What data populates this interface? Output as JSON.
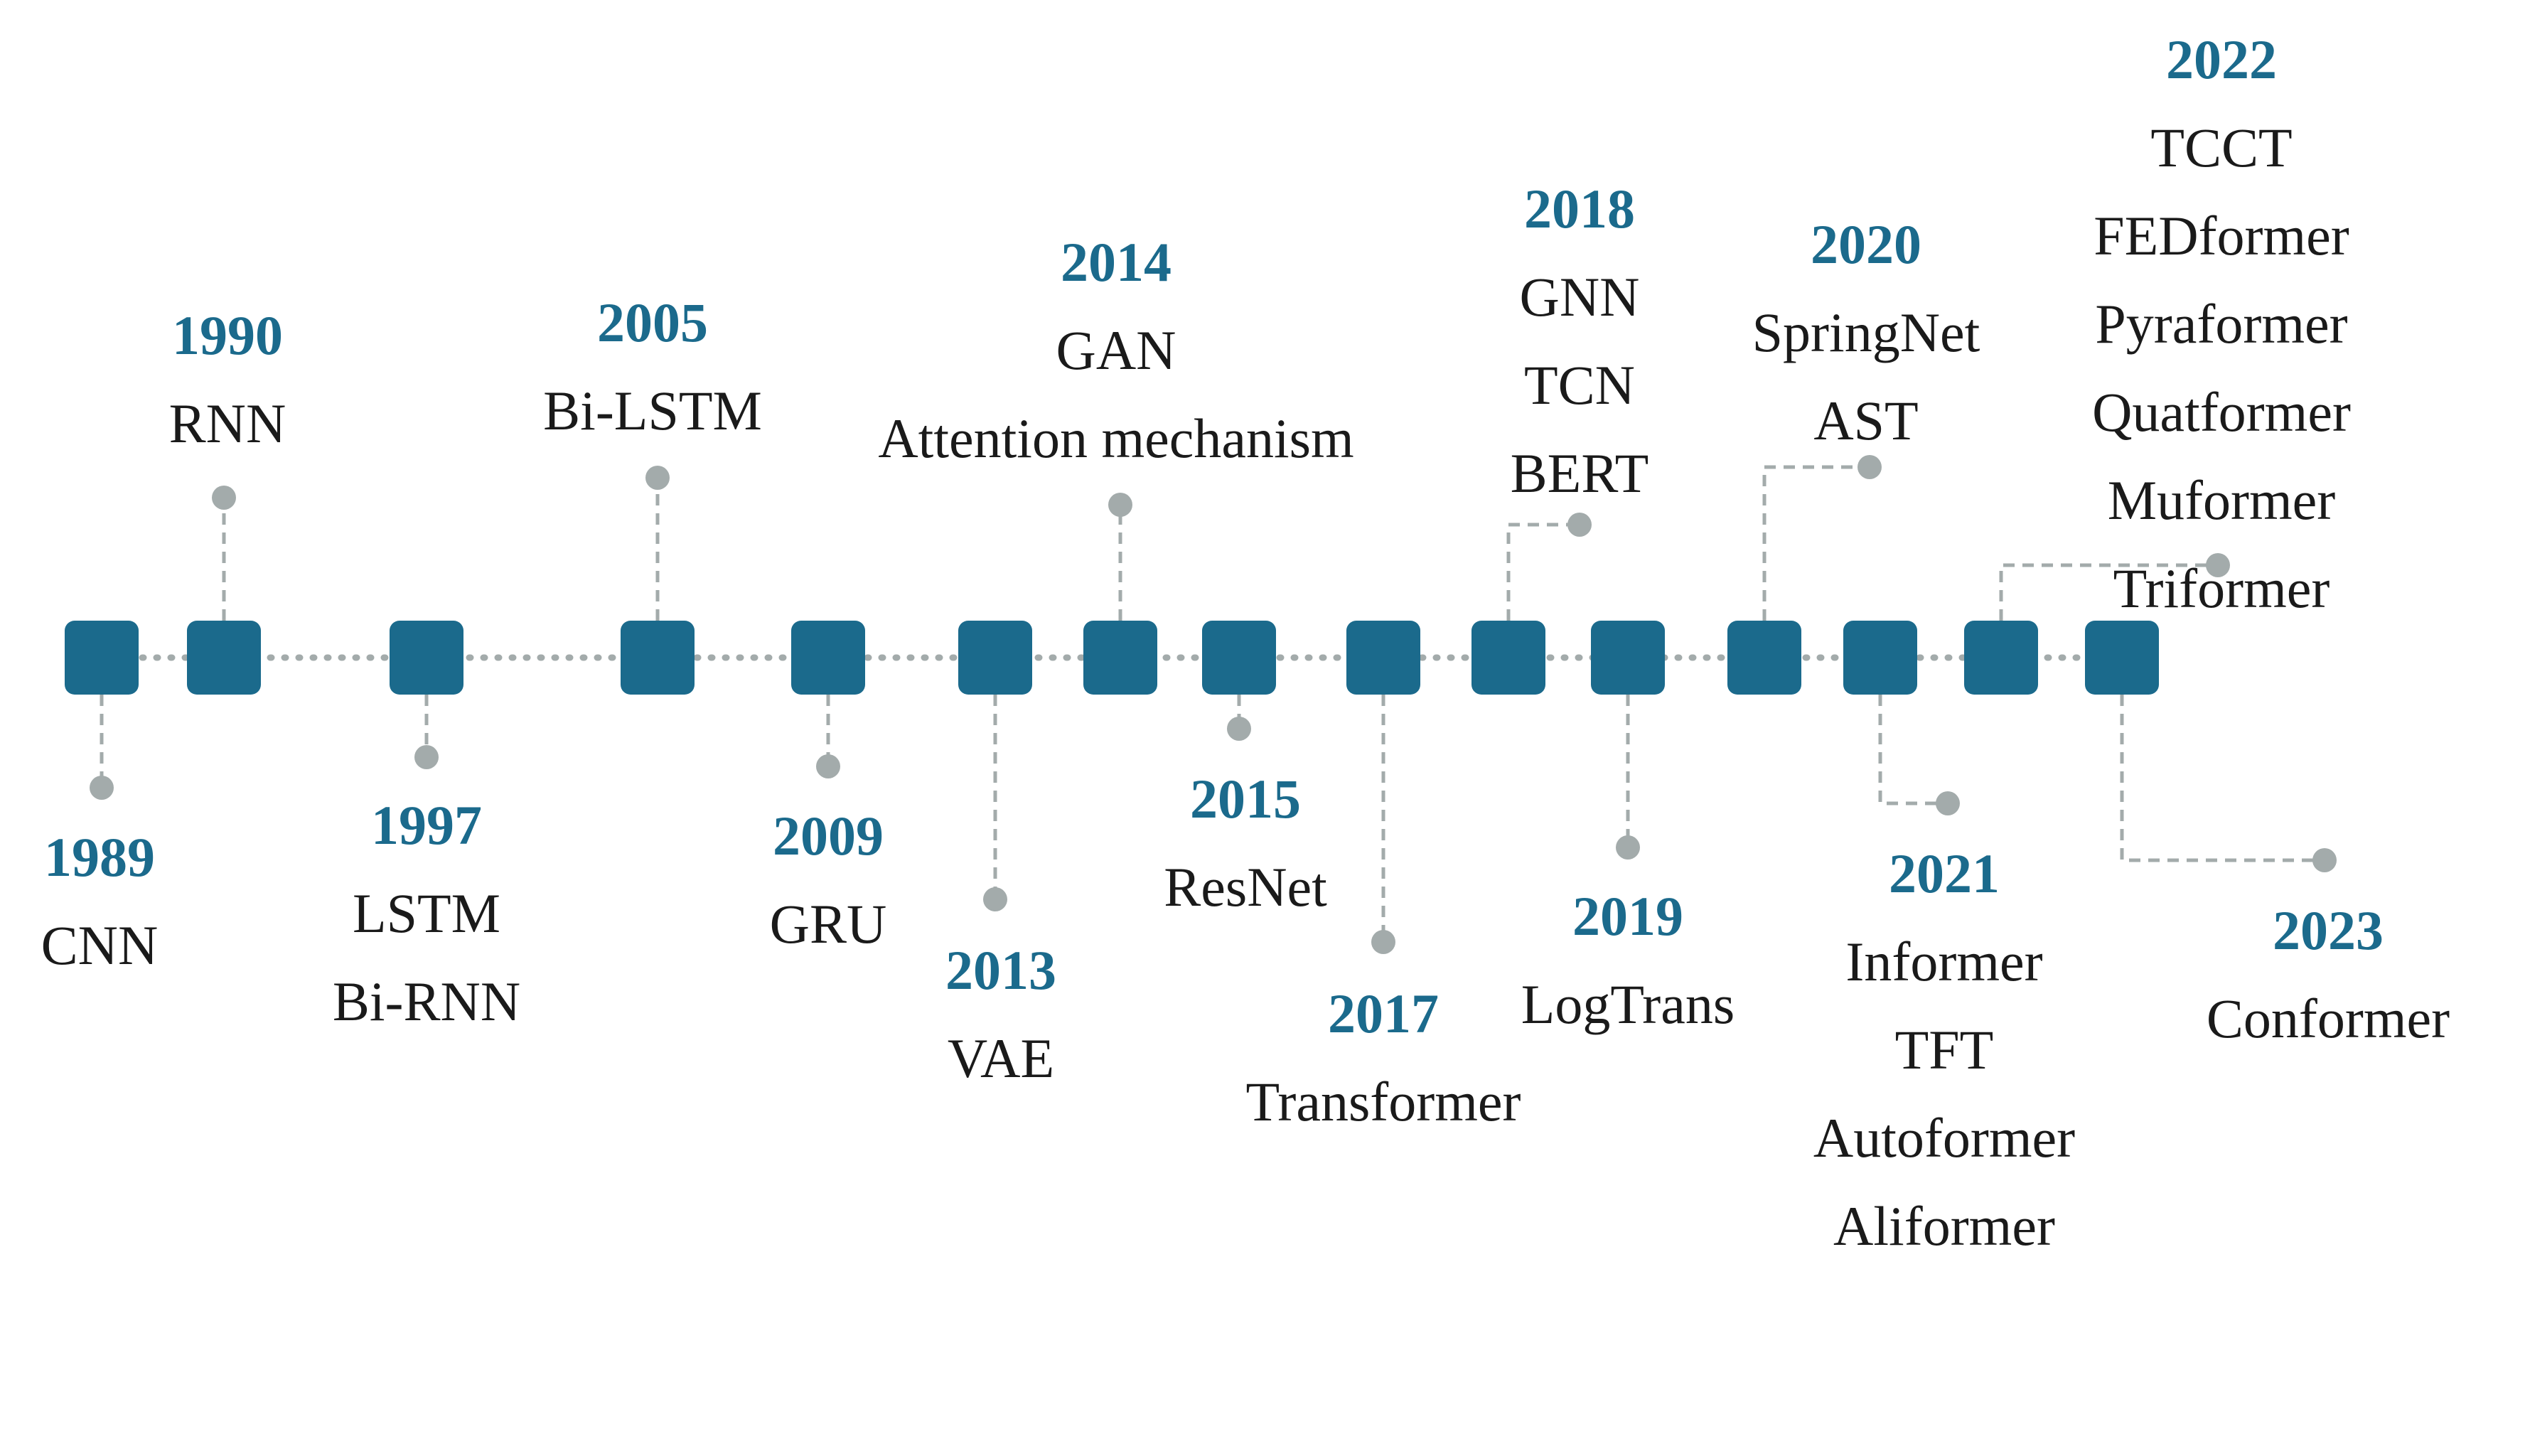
{
  "colors": {
    "node": "#1b6a8c",
    "year": "#1b6a8c",
    "connector": "#a3abab",
    "text": "#1a1a1a"
  },
  "events": [
    {
      "year": "1989",
      "models": [
        "CNN"
      ]
    },
    {
      "year": "1990",
      "models": [
        "RNN"
      ]
    },
    {
      "year": "1997",
      "models": [
        "LSTM",
        "Bi-RNN"
      ]
    },
    {
      "year": "2005",
      "models": [
        "Bi-LSTM"
      ]
    },
    {
      "year": "2009",
      "models": [
        "GRU"
      ]
    },
    {
      "year": "2013",
      "models": [
        "VAE"
      ]
    },
    {
      "year": "2014",
      "models": [
        "GAN",
        "Attention mechanism"
      ]
    },
    {
      "year": "2015",
      "models": [
        "ResNet"
      ]
    },
    {
      "year": "2017",
      "models": [
        "Transformer"
      ]
    },
    {
      "year": "2018",
      "models": [
        "GNN",
        "TCN",
        "BERT"
      ]
    },
    {
      "year": "2019",
      "models": [
        "LogTrans"
      ]
    },
    {
      "year": "2020",
      "models": [
        "SpringNet",
        "AST"
      ]
    },
    {
      "year": "2021",
      "models": [
        "Informer",
        "TFT",
        "Autoformer",
        "Aliformer"
      ]
    },
    {
      "year": "2022",
      "models": [
        "TCCT",
        "FEDformer",
        "Pyraformer",
        "Quatformer",
        "Muformer",
        "Triformer"
      ]
    },
    {
      "year": "2023",
      "models": [
        "Conformer"
      ]
    }
  ]
}
